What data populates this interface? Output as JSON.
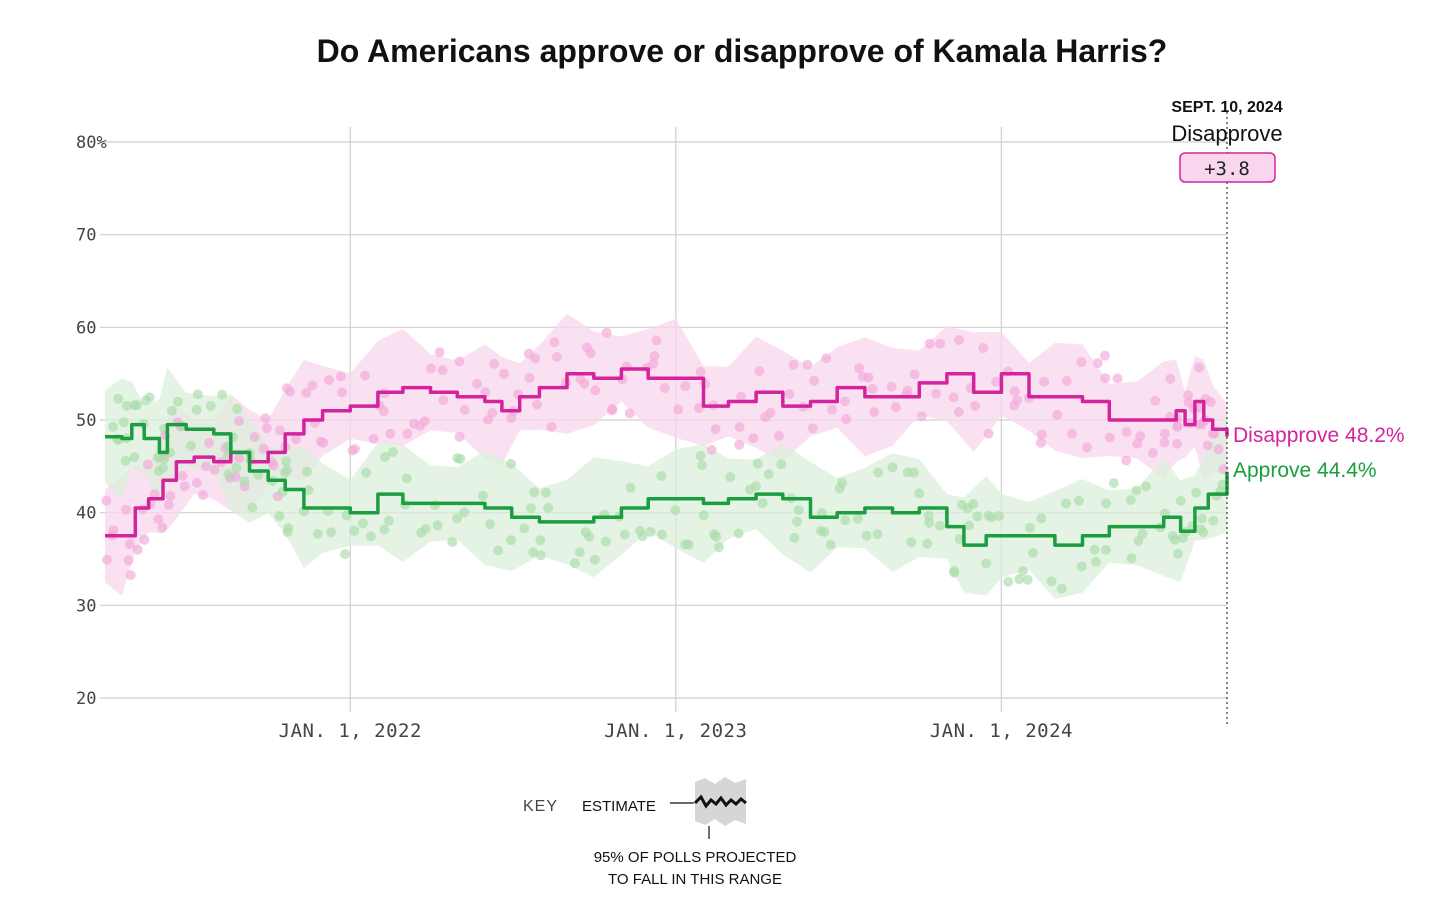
{
  "colors": {
    "approve": "#1a9e3f",
    "approve_band": "#dcefdc",
    "approve_dot": "#a9dba9",
    "disapprove": "#d4249d",
    "disapprove_band": "#f8d7ee",
    "disapprove_dot": "#f2a7d9",
    "grid": "#cfcfcf"
  },
  "chart_data": {
    "type": "line",
    "title": "Do Americans approve or disapprove of Kamala Harris?",
    "y_ticks": [
      "80%",
      "70",
      "60",
      "50",
      "40",
      "30",
      "20"
    ],
    "ylim": [
      20,
      80
    ],
    "xlim": [
      "2021-04-01",
      "2024-09-10"
    ],
    "x_ticks": [
      {
        "date": "2022-01-01",
        "label": "JAN. 1, 2022"
      },
      {
        "date": "2023-01-01",
        "label": "JAN. 1, 2023"
      },
      {
        "date": "2024-01-01",
        "label": "JAN. 1, 2024"
      }
    ],
    "grid": true,
    "annotation": {
      "date_label": "SEPT. 10, 2024",
      "leader": "Disapprove",
      "margin": "+3.8"
    },
    "series": [
      {
        "name": "Disapprove",
        "end_label": "Disapprove 48.2%",
        "values": [
          [
            "2021-04-01",
            37.5
          ],
          [
            "2021-04-20",
            37.5
          ],
          [
            "2021-05-05",
            40.5
          ],
          [
            "2021-05-20",
            41.5
          ],
          [
            "2021-06-05",
            43.5
          ],
          [
            "2021-06-20",
            45.5
          ],
          [
            "2021-07-10",
            46.0
          ],
          [
            "2021-08-01",
            45.5
          ],
          [
            "2021-08-20",
            46.5
          ],
          [
            "2021-09-10",
            45.5
          ],
          [
            "2021-10-01",
            46.5
          ],
          [
            "2021-10-20",
            48.5
          ],
          [
            "2021-11-10",
            50.0
          ],
          [
            "2021-12-01",
            51.0
          ],
          [
            "2022-01-01",
            51.5
          ],
          [
            "2022-02-01",
            53.0
          ],
          [
            "2022-03-01",
            53.5
          ],
          [
            "2022-04-01",
            53.0
          ],
          [
            "2022-05-01",
            52.5
          ],
          [
            "2022-06-01",
            52.0
          ],
          [
            "2022-06-20",
            51.0
          ],
          [
            "2022-07-10",
            52.5
          ],
          [
            "2022-08-01",
            53.5
          ],
          [
            "2022-09-01",
            55.0
          ],
          [
            "2022-10-01",
            54.5
          ],
          [
            "2022-11-01",
            55.5
          ],
          [
            "2022-12-01",
            54.5
          ],
          [
            "2023-01-01",
            54.5
          ],
          [
            "2023-02-01",
            51.5
          ],
          [
            "2023-03-01",
            52.0
          ],
          [
            "2023-04-01",
            53.0
          ],
          [
            "2023-05-01",
            51.5
          ],
          [
            "2023-06-01",
            52.0
          ],
          [
            "2023-07-01",
            53.5
          ],
          [
            "2023-08-01",
            52.5
          ],
          [
            "2023-09-01",
            52.5
          ],
          [
            "2023-10-01",
            54.0
          ],
          [
            "2023-11-01",
            55.0
          ],
          [
            "2023-12-01",
            53.0
          ],
          [
            "2024-01-01",
            55.0
          ],
          [
            "2024-02-01",
            52.5
          ],
          [
            "2024-03-01",
            52.5
          ],
          [
            "2024-04-01",
            52.0
          ],
          [
            "2024-05-01",
            50.0
          ],
          [
            "2024-06-01",
            50.0
          ],
          [
            "2024-07-01",
            50.0
          ],
          [
            "2024-07-15",
            51.0
          ],
          [
            "2024-07-25",
            49.5
          ],
          [
            "2024-08-05",
            52.0
          ],
          [
            "2024-08-15",
            50.0
          ],
          [
            "2024-08-25",
            49.0
          ],
          [
            "2024-09-10",
            48.2
          ]
        ]
      },
      {
        "name": "Approve",
        "end_label": "Approve 44.4%",
        "values": [
          [
            "2021-04-01",
            48.2
          ],
          [
            "2021-04-20",
            48.0
          ],
          [
            "2021-05-01",
            49.5
          ],
          [
            "2021-05-15",
            48.0
          ],
          [
            "2021-06-01",
            46.5
          ],
          [
            "2021-06-10",
            49.5
          ],
          [
            "2021-07-01",
            49.0
          ],
          [
            "2021-08-01",
            48.5
          ],
          [
            "2021-08-20",
            46.5
          ],
          [
            "2021-09-10",
            44.5
          ],
          [
            "2021-10-01",
            43.5
          ],
          [
            "2021-10-20",
            42.5
          ],
          [
            "2021-11-10",
            40.5
          ],
          [
            "2021-12-01",
            40.5
          ],
          [
            "2022-01-01",
            40.0
          ],
          [
            "2022-02-01",
            42.0
          ],
          [
            "2022-03-01",
            41.0
          ],
          [
            "2022-04-01",
            41.0
          ],
          [
            "2022-05-01",
            41.0
          ],
          [
            "2022-06-01",
            40.5
          ],
          [
            "2022-07-01",
            39.5
          ],
          [
            "2022-08-01",
            39.0
          ],
          [
            "2022-09-01",
            39.0
          ],
          [
            "2022-10-01",
            39.5
          ],
          [
            "2022-11-01",
            40.5
          ],
          [
            "2022-12-01",
            41.5
          ],
          [
            "2023-01-01",
            41.5
          ],
          [
            "2023-02-01",
            41.0
          ],
          [
            "2023-03-01",
            41.5
          ],
          [
            "2023-04-01",
            42.0
          ],
          [
            "2023-05-01",
            41.5
          ],
          [
            "2023-06-01",
            39.5
          ],
          [
            "2023-07-01",
            40.0
          ],
          [
            "2023-08-01",
            40.5
          ],
          [
            "2023-09-01",
            40.0
          ],
          [
            "2023-10-01",
            40.5
          ],
          [
            "2023-11-01",
            38.5
          ],
          [
            "2023-11-20",
            36.5
          ],
          [
            "2023-12-15",
            37.5
          ],
          [
            "2024-01-01",
            37.5
          ],
          [
            "2024-02-01",
            37.5
          ],
          [
            "2024-03-01",
            36.5
          ],
          [
            "2024-04-01",
            37.5
          ],
          [
            "2024-05-01",
            38.5
          ],
          [
            "2024-06-01",
            38.5
          ],
          [
            "2024-07-01",
            39.5
          ],
          [
            "2024-07-20",
            38.0
          ],
          [
            "2024-08-05",
            40.5
          ],
          [
            "2024-08-20",
            42.0
          ],
          [
            "2024-09-10",
            44.4
          ]
        ]
      }
    ]
  },
  "key": {
    "title": "KEY",
    "estimate_label": "ESTIMATE",
    "range_label_line1": "95% OF POLLS PROJECTED",
    "range_label_line2": "TO FALL IN THIS RANGE"
  }
}
